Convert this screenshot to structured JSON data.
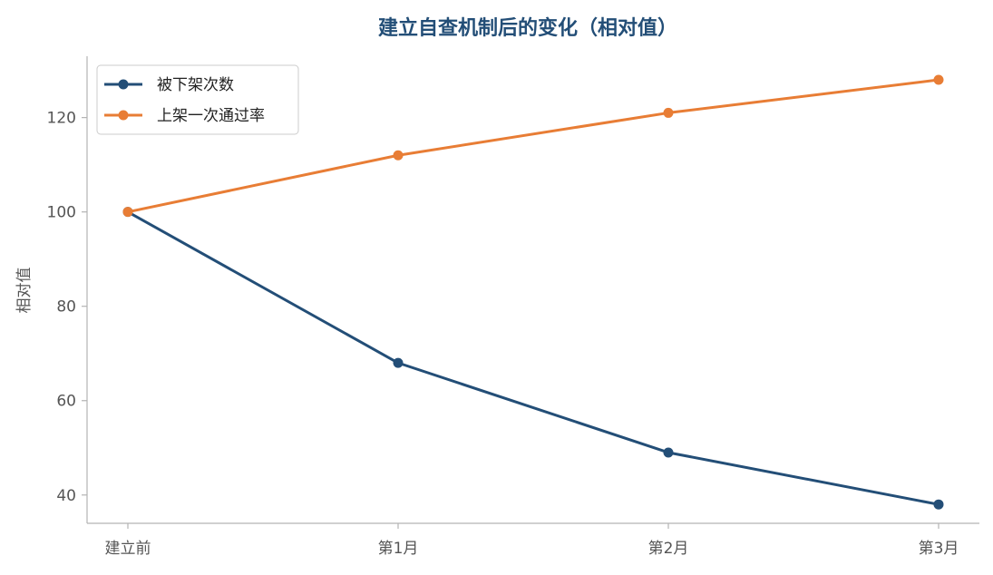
{
  "chart_data": {
    "type": "line",
    "title": "建立自查机制后的变化（相对值）",
    "xlabel": "",
    "ylabel": "相对值",
    "categories": [
      "建立前",
      "第1月",
      "第2月",
      "第3月"
    ],
    "series": [
      {
        "name": "被下架次数",
        "color": "#234e77",
        "values": [
          100,
          68,
          49,
          38
        ]
      },
      {
        "name": "上架一次通过率",
        "color": "#e87d35",
        "values": [
          100,
          112,
          121,
          128
        ]
      }
    ],
    "ylim": [
      34,
      133
    ],
    "yticks": [
      40,
      60,
      80,
      100,
      120
    ],
    "grid": false,
    "legend_position": "top-left",
    "title_color": "#234e77",
    "axis_color": "#b3b3b3"
  }
}
